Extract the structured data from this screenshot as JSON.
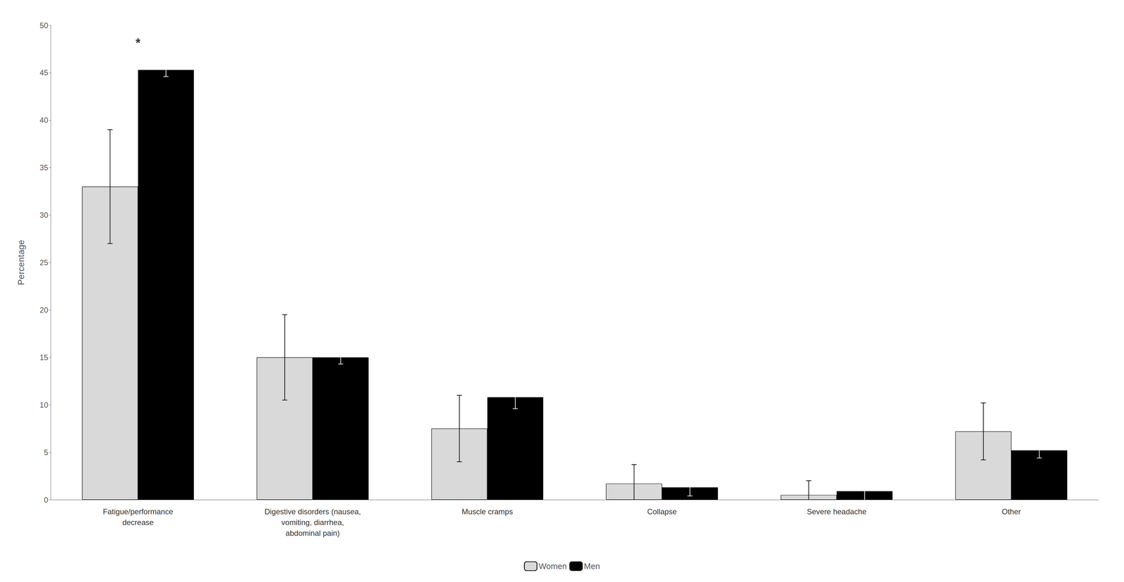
{
  "chart_data": {
    "type": "bar",
    "categories": [
      "Fatigue/performance\ndecrease",
      "Digestive disorders (nausea,\nvomiting, diarrhea,\nabdominal pain)",
      "Muscle cramps",
      "Collapse",
      "Severe headache",
      "Other"
    ],
    "series": [
      {
        "name": "Women",
        "color": "#d9d9d9",
        "values": [
          33.0,
          15.0,
          7.5,
          1.7,
          0.5,
          7.2
        ],
        "errors": [
          6.0,
          4.5,
          3.5,
          2.0,
          1.5,
          3.0
        ]
      },
      {
        "name": "Men",
        "color": "#000000",
        "values": [
          45.3,
          15.0,
          10.8,
          1.3,
          0.9,
          5.2
        ],
        "errors": [
          0.7,
          0.7,
          1.2,
          0.9,
          1.0,
          0.8
        ]
      }
    ],
    "ylabel": "Percentage",
    "ylim": [
      0,
      50
    ],
    "yticks": [
      0,
      5,
      10,
      15,
      20,
      25,
      30,
      35,
      40,
      45,
      50
    ],
    "grid": false,
    "legend": "bottom",
    "annotations": [
      {
        "text": "*",
        "x": "Fatigue/performance\ndecrease",
        "y": 47.5
      }
    ]
  }
}
